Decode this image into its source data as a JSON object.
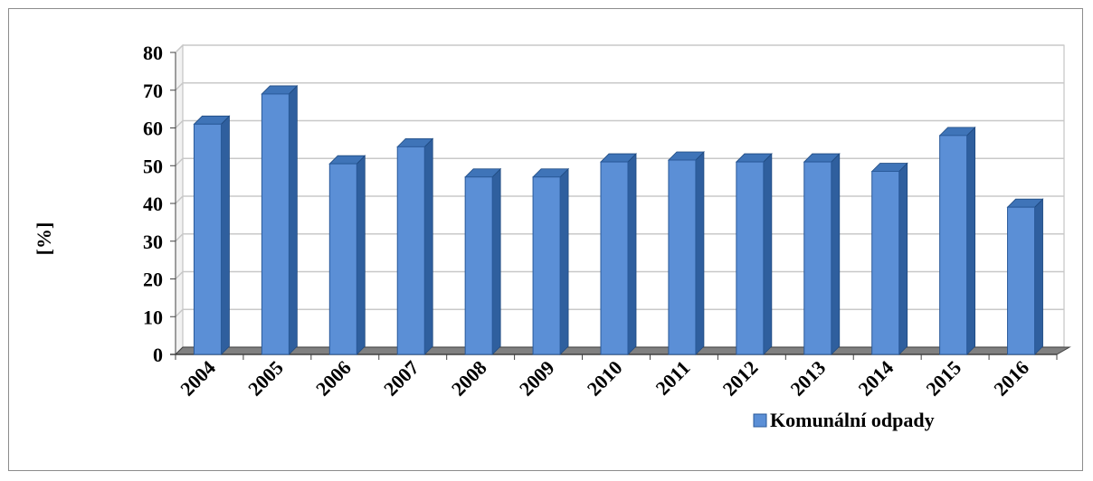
{
  "chart_data": {
    "type": "bar",
    "categories": [
      "2004",
      "2005",
      "2006",
      "2007",
      "2008",
      "2009",
      "2010",
      "2011",
      "2012",
      "2013",
      "2014",
      "2015",
      "2016"
    ],
    "series": [
      {
        "name": "Komunální odpady",
        "values": [
          61,
          69,
          50.5,
          55,
          47,
          47,
          51,
          51.5,
          51,
          51,
          48.5,
          58,
          39
        ]
      }
    ],
    "title": "",
    "xlabel": "",
    "ylabel": "[%]",
    "ylim": [
      0,
      80
    ],
    "yticks": [
      0,
      10,
      20,
      30,
      40,
      50,
      60,
      70,
      80
    ],
    "grid": true,
    "legend_position": "bottom-right",
    "style": "3d-column",
    "colors": {
      "bar_front": "#5b8fd6",
      "bar_side": "#2f5f9e",
      "bar_top": "#3f74b8",
      "floor": "#808080",
      "gridline": "#c8c8c8"
    }
  }
}
